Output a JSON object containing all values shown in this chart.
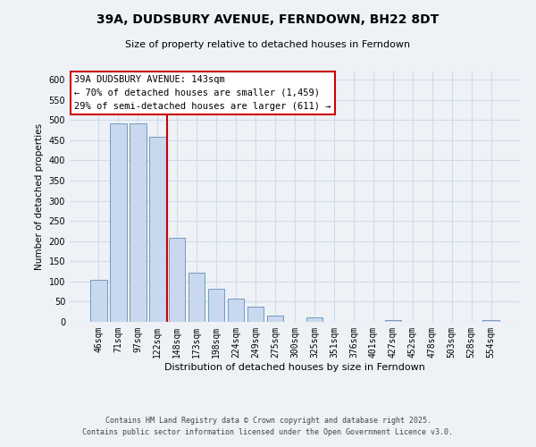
{
  "title": "39A, DUDSBURY AVENUE, FERNDOWN, BH22 8DT",
  "subtitle": "Size of property relative to detached houses in Ferndown",
  "xlabel": "Distribution of detached houses by size in Ferndown",
  "ylabel": "Number of detached properties",
  "categories": [
    "46sqm",
    "71sqm",
    "97sqm",
    "122sqm",
    "148sqm",
    "173sqm",
    "198sqm",
    "224sqm",
    "249sqm",
    "275sqm",
    "300sqm",
    "325sqm",
    "351sqm",
    "376sqm",
    "401sqm",
    "427sqm",
    "452sqm",
    "478sqm",
    "503sqm",
    "528sqm",
    "554sqm"
  ],
  "values": [
    105,
    492,
    492,
    458,
    208,
    122,
    82,
    58,
    37,
    15,
    0,
    10,
    0,
    0,
    0,
    5,
    0,
    0,
    0,
    0,
    5
  ],
  "bar_color": "#c8d8ee",
  "bar_edge_color": "#7799bb",
  "vline_x": 3.5,
  "vline_color": "#cc0000",
  "annotation_line1": "39A DUDSBURY AVENUE: 143sqm",
  "annotation_line2": "← 70% of detached houses are smaller (1,459)",
  "annotation_line3": "29% of semi-detached houses are larger (611) →",
  "annotation_box_color": "#ffffff",
  "annotation_box_edge_color": "#cc0000",
  "ylim": [
    0,
    620
  ],
  "yticks": [
    0,
    50,
    100,
    150,
    200,
    250,
    300,
    350,
    400,
    450,
    500,
    550,
    600
  ],
  "footer_line1": "Contains HM Land Registry data © Crown copyright and database right 2025.",
  "footer_line2": "Contains public sector information licensed under the Open Government Licence v3.0.",
  "background_color": "#eef2f7",
  "grid_color": "#d0dcea"
}
